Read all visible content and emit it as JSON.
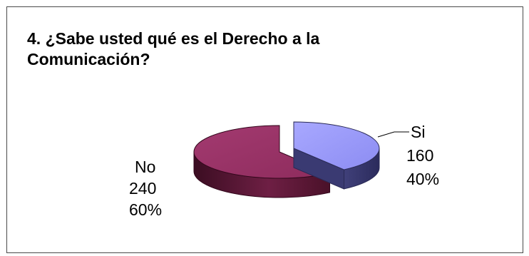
{
  "chart_data": {
    "type": "pie",
    "style": "3d-exploded",
    "title": "4. ¿Sabe usted qué es el Derecho a la Comunicación?",
    "categories": [
      "Si",
      "No"
    ],
    "values": [
      160,
      240
    ],
    "percentages": [
      "40%",
      "60%"
    ],
    "value_labels": [
      "160",
      "240"
    ],
    "colors": {
      "Si": "#9999ff",
      "No": "#993366"
    },
    "legend": "none",
    "data_labels": "category, value, percent"
  }
}
